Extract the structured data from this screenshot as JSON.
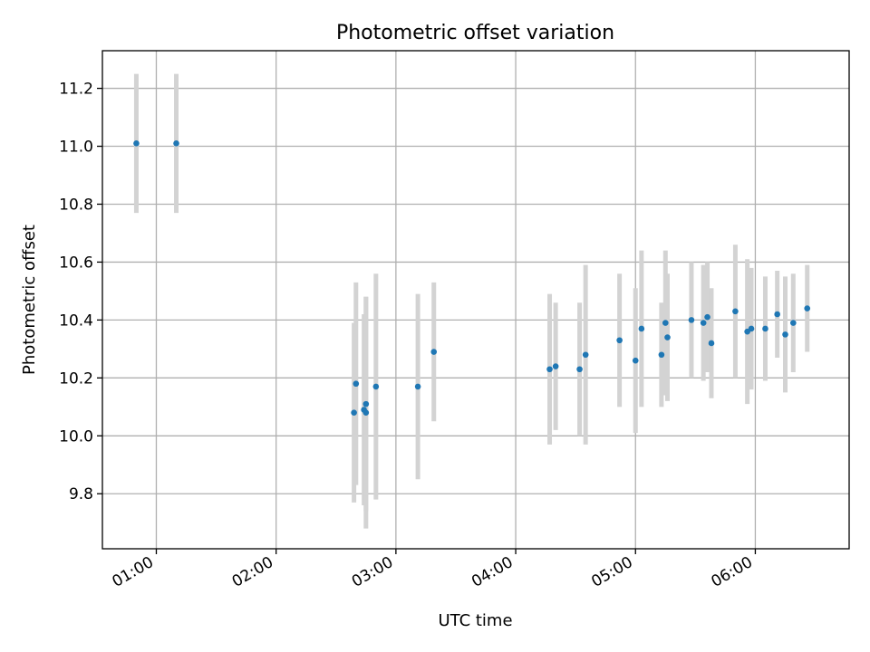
{
  "chart_data": {
    "type": "scatter",
    "title": "Photometric offset variation",
    "xlabel": "UTC time",
    "ylabel": "Photometric offset",
    "x_ticks": [
      "01:00",
      "02:00",
      "03:00",
      "04:00",
      "05:00",
      "06:00"
    ],
    "y_ticks": [
      "9.8",
      "10.0",
      "10.2",
      "10.4",
      "10.6",
      "10.8",
      "11.0",
      "11.2"
    ],
    "xlim": [
      "00:33",
      "06:47"
    ],
    "ylim": [
      9.61,
      11.33
    ],
    "grid": true,
    "colors": {
      "marker": "#1f77b4",
      "errorbar": "#d3d3d3",
      "grid": "#b0b0b0"
    },
    "points": [
      {
        "x": "00:50",
        "y": 11.01,
        "err": 0.24
      },
      {
        "x": "01:10",
        "y": 11.01,
        "err": 0.24
      },
      {
        "x": "02:39",
        "y": 10.08,
        "err": 0.31
      },
      {
        "x": "02:40",
        "y": 10.18,
        "err": 0.35
      },
      {
        "x": "02:44",
        "y": 10.09,
        "err": 0.33
      },
      {
        "x": "02:45",
        "y": 10.11,
        "err": 0.37
      },
      {
        "x": "02:45",
        "y": 10.08,
        "err": 0.4
      },
      {
        "x": "02:50",
        "y": 10.17,
        "err": 0.39
      },
      {
        "x": "03:11",
        "y": 10.17,
        "err": 0.32
      },
      {
        "x": "03:19",
        "y": 10.29,
        "err": 0.24
      },
      {
        "x": "04:17",
        "y": 10.23,
        "err": 0.26
      },
      {
        "x": "04:20",
        "y": 10.24,
        "err": 0.22
      },
      {
        "x": "04:32",
        "y": 10.23,
        "err": 0.23
      },
      {
        "x": "04:35",
        "y": 10.28,
        "err": 0.31
      },
      {
        "x": "04:52",
        "y": 10.33,
        "err": 0.23
      },
      {
        "x": "05:00",
        "y": 10.26,
        "err": 0.25
      },
      {
        "x": "05:03",
        "y": 10.37,
        "err": 0.27
      },
      {
        "x": "05:13",
        "y": 10.28,
        "err": 0.18
      },
      {
        "x": "05:15",
        "y": 10.39,
        "err": 0.25
      },
      {
        "x": "05:16",
        "y": 10.34,
        "err": 0.22
      },
      {
        "x": "05:28",
        "y": 10.4,
        "err": 0.2
      },
      {
        "x": "05:34",
        "y": 10.39,
        "err": 0.2
      },
      {
        "x": "05:36",
        "y": 10.41,
        "err": 0.19
      },
      {
        "x": "05:38",
        "y": 10.32,
        "err": 0.19
      },
      {
        "x": "05:50",
        "y": 10.43,
        "err": 0.23
      },
      {
        "x": "05:56",
        "y": 10.36,
        "err": 0.25
      },
      {
        "x": "05:58",
        "y": 10.37,
        "err": 0.21
      },
      {
        "x": "06:05",
        "y": 10.37,
        "err": 0.18
      },
      {
        "x": "06:11",
        "y": 10.42,
        "err": 0.15
      },
      {
        "x": "06:15",
        "y": 10.35,
        "err": 0.2
      },
      {
        "x": "06:19",
        "y": 10.39,
        "err": 0.17
      },
      {
        "x": "06:26",
        "y": 10.44,
        "err": 0.15
      }
    ]
  }
}
